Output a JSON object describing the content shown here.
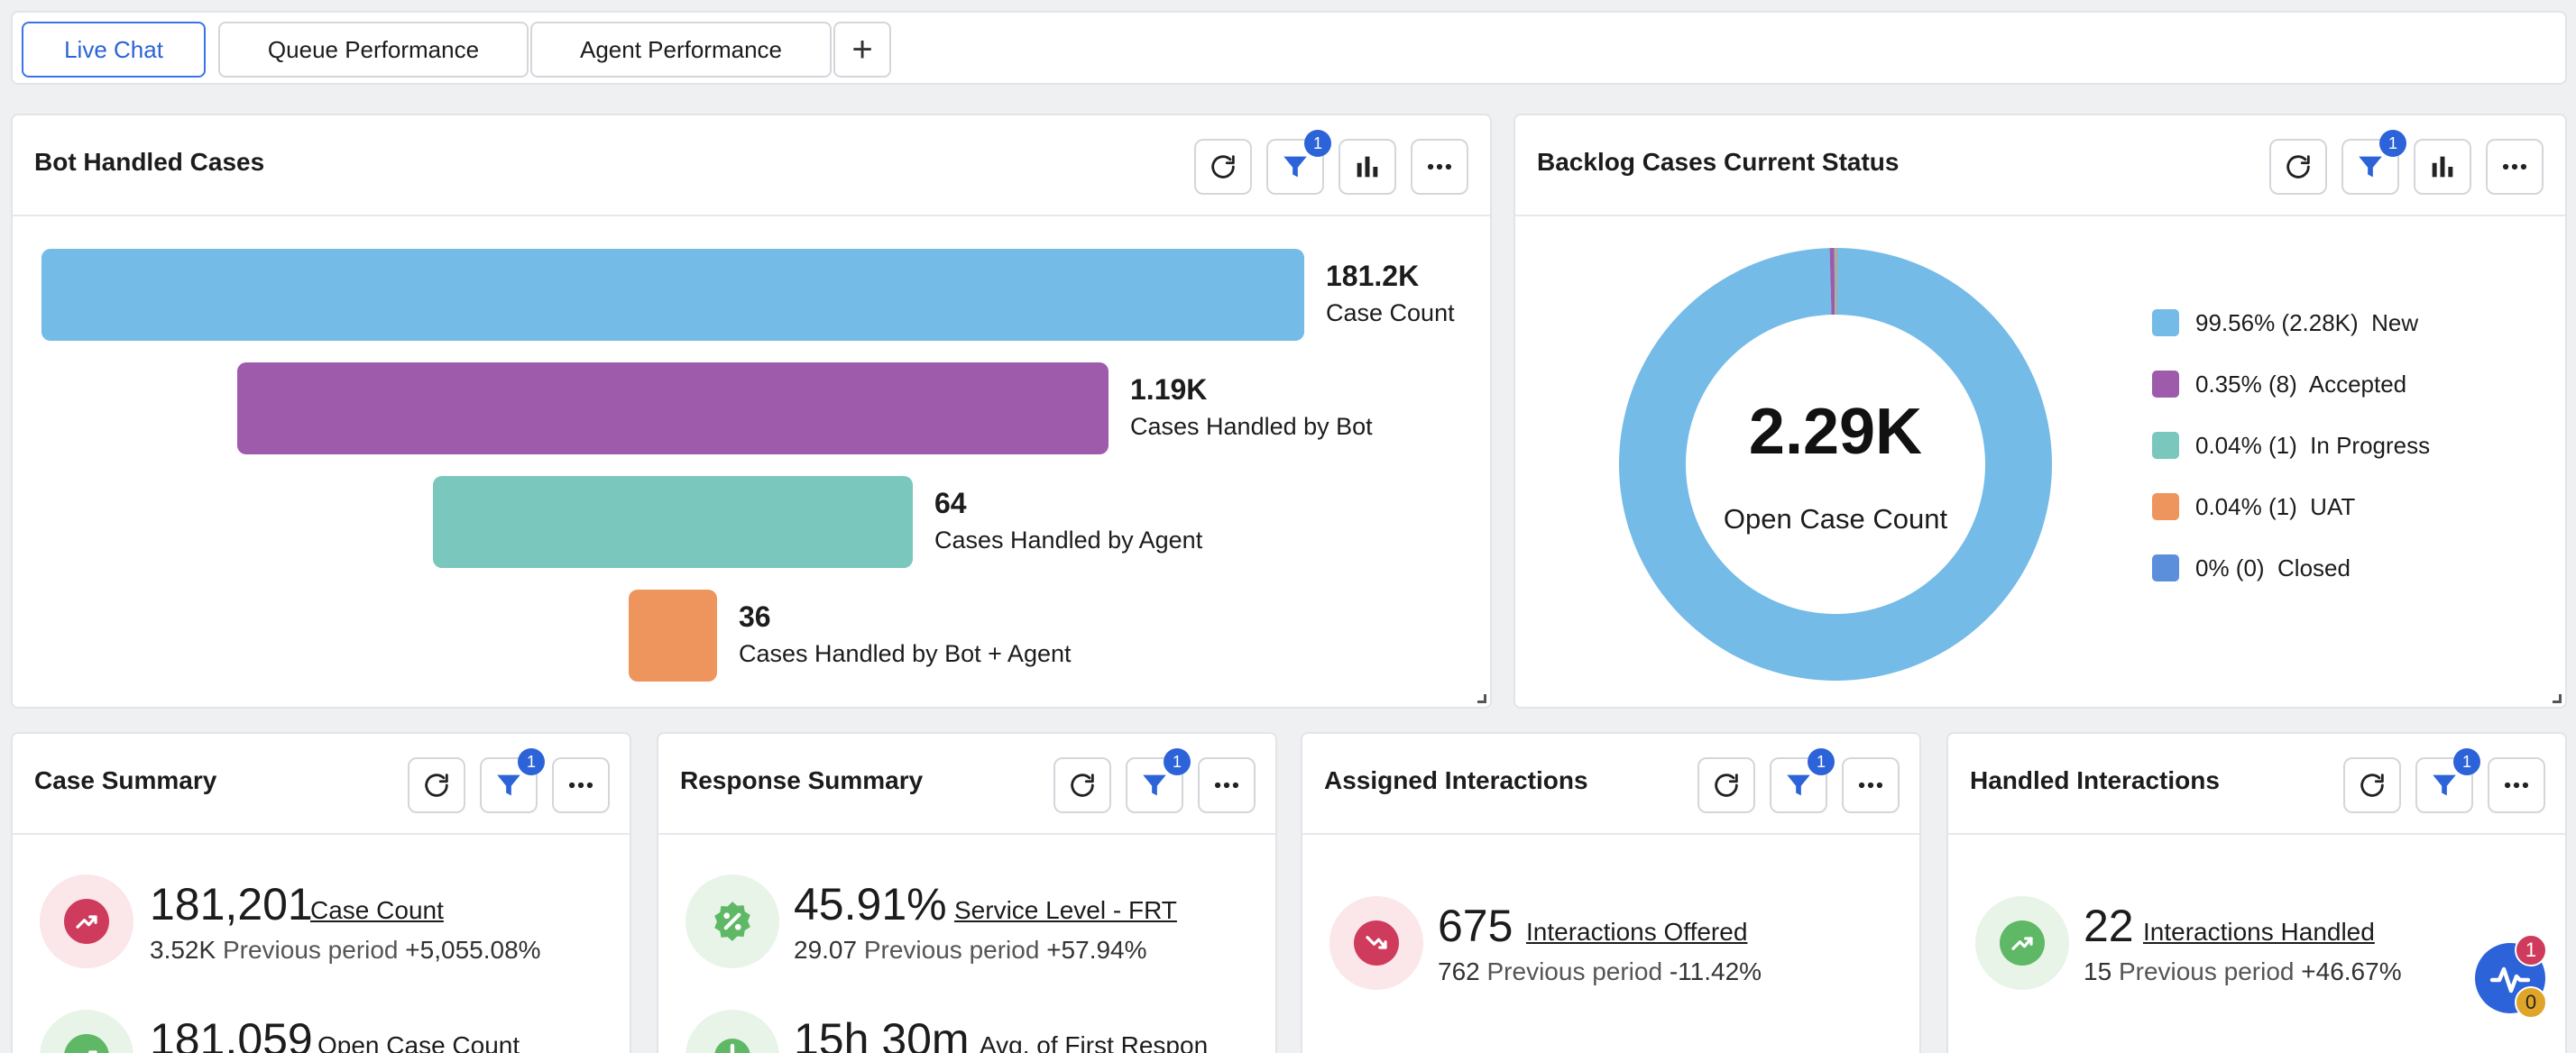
{
  "tabs": {
    "live_chat": "Live Chat",
    "queue_performance": "Queue Performance",
    "agent_performance": "Agent Performance",
    "add": "+"
  },
  "filter_badge": "1",
  "bot_handled": {
    "title": "Bot Handled Cases",
    "stages": [
      {
        "value_label": "181.2K",
        "label": "Case Count",
        "value": 181200,
        "color": "#74bbe8"
      },
      {
        "value_label": "1.19K",
        "label": "Cases Handled by Bot",
        "value": 1190,
        "color": "#9e5aab"
      },
      {
        "value_label": "64",
        "label": "Cases Handled by Agent",
        "value": 64,
        "color": "#7ac7be"
      },
      {
        "value_label": "36",
        "label": "Cases Handled by Bot + Agent",
        "value": 36,
        "color": "#ee955d"
      }
    ]
  },
  "backlog": {
    "title": "Backlog Cases Current Status",
    "center_value": "2.29K",
    "center_label": "Open Case Count",
    "legend": [
      {
        "pct": "99.56%",
        "count": "(2.28K)",
        "status": "New",
        "share": 99.56,
        "color": "#74bbe8"
      },
      {
        "pct": "0.35%",
        "count": "(8)",
        "status": "Accepted",
        "share": 0.35,
        "color": "#9e5aab"
      },
      {
        "pct": "0.04%",
        "count": "(1)",
        "status": "In Progress",
        "share": 0.04,
        "color": "#7ac7be"
      },
      {
        "pct": "0.04%",
        "count": "(1)",
        "status": "UAT",
        "share": 0.04,
        "color": "#ee955d"
      },
      {
        "pct": "0%",
        "count": "(0)",
        "status": "Closed",
        "share": 0,
        "color": "#5b8fdc"
      }
    ]
  },
  "case_summary": {
    "title": "Case Summary",
    "m1": {
      "value": "181,201",
      "label": "Case Count",
      "prev_value": "3.52K",
      "prev_label": "Previous period",
      "change": "+5,055.08%"
    },
    "m2": {
      "value": "181,059",
      "label": "Open Case Count"
    }
  },
  "response_summary": {
    "title": "Response Summary",
    "m1": {
      "value": "45.91%",
      "label": "Service Level - FRT",
      "prev_value": "29.07",
      "prev_label": "Previous period",
      "change": "+57.94%"
    },
    "m2": {
      "value": "15h 30m",
      "label": "Avg. of First Respon"
    }
  },
  "assigned": {
    "title": "Assigned Interactions",
    "m1": {
      "value": "675",
      "label": "Interactions Offered",
      "prev_value": "762",
      "prev_label": "Previous period",
      "change": "-11.42%"
    }
  },
  "handled": {
    "title": "Handled Interactions",
    "m1": {
      "value": "22",
      "label": "Interactions Handled",
      "prev_value": "15",
      "prev_label": "Previous period",
      "change": "+46.67%"
    }
  },
  "widget": {
    "badge_top": "1",
    "badge_bottom": "0"
  }
}
